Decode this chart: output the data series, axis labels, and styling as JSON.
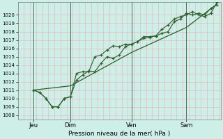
{
  "xlabel": "Pression niveau de la mer( hPa )",
  "bg_color": "#ceeee8",
  "grid_color_h": "#e8b0b0",
  "grid_color_v": "#e8b0b0",
  "line_color": "#2a5e2a",
  "ylim": [
    1007.5,
    1021.5
  ],
  "yticks": [
    1008,
    1009,
    1010,
    1011,
    1012,
    1013,
    1014,
    1015,
    1016,
    1017,
    1018,
    1019,
    1020
  ],
  "xlim": [
    -0.3,
    16.3
  ],
  "xtick_positions": [
    1,
    4,
    9,
    13.5
  ],
  "xtick_labels": [
    "Jeu",
    "Dim",
    "Ven",
    "Sam"
  ],
  "vline_positions": [
    1,
    4,
    9,
    13.5
  ],
  "line1_x": [
    1.0,
    1.5,
    2.0,
    2.5,
    3.0,
    3.5,
    4.0,
    4.5,
    5.0,
    5.5,
    6.0,
    6.5,
    7.0,
    7.5,
    8.0,
    8.5,
    9.0,
    9.5,
    10.0,
    10.5,
    11.0,
    11.5,
    12.0,
    12.5,
    13.0,
    13.5,
    14.0,
    14.5,
    15.0,
    15.5,
    16.0
  ],
  "line1_y": [
    1011.0,
    1010.7,
    1010.0,
    1009.0,
    1009.0,
    1010.0,
    1010.2,
    1012.2,
    1012.8,
    1013.3,
    1013.2,
    1014.2,
    1015.0,
    1014.8,
    1015.2,
    1016.2,
    1016.5,
    1016.8,
    1017.2,
    1017.3,
    1017.5,
    1017.8,
    1018.0,
    1019.2,
    1019.5,
    1020.2,
    1020.0,
    1020.2,
    1020.0,
    1020.8,
    1021.2
  ],
  "line2_x": [
    1.0,
    1.5,
    2.0,
    2.5,
    3.0,
    3.5,
    4.0,
    4.5,
    5.0,
    5.5,
    6.0,
    6.5,
    7.0,
    7.5,
    8.0,
    8.5,
    9.0,
    9.5,
    10.0,
    10.5,
    11.0,
    11.5,
    12.0,
    12.5,
    13.0,
    13.5,
    14.0,
    14.5,
    15.0,
    15.5,
    16.0
  ],
  "line2_y": [
    1011.0,
    1010.7,
    1010.0,
    1009.0,
    1009.0,
    1010.0,
    1010.2,
    1013.0,
    1013.2,
    1013.2,
    1015.0,
    1015.2,
    1015.8,
    1016.3,
    1016.2,
    1016.5,
    1016.5,
    1016.8,
    1017.4,
    1017.4,
    1017.5,
    1018.3,
    1018.8,
    1019.5,
    1019.8,
    1020.0,
    1020.4,
    1020.0,
    1019.8,
    1020.2,
    1021.5
  ],
  "line3_x": [
    1.0,
    4.0,
    9.0,
    13.5,
    16.0
  ],
  "line3_y": [
    1011.0,
    1011.5,
    1015.5,
    1018.5,
    1021.3
  ]
}
